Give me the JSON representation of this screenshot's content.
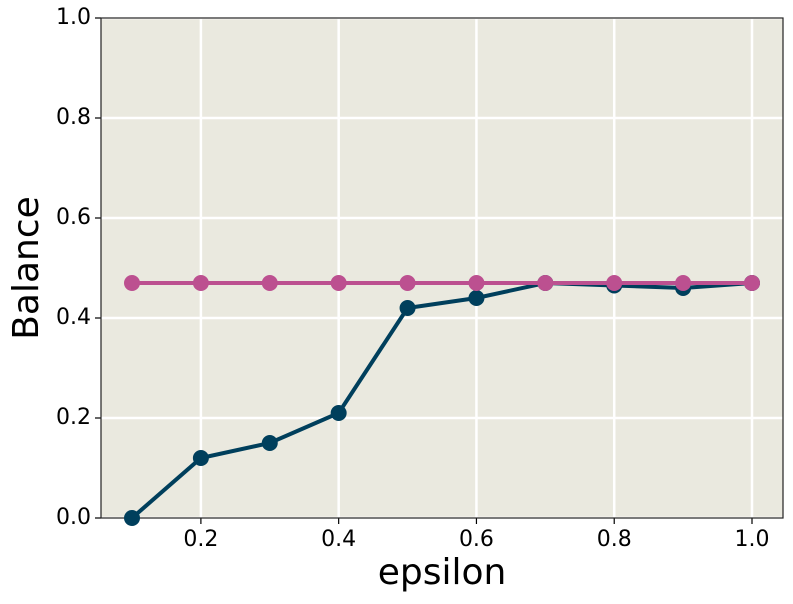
{
  "chart_data": {
    "type": "line",
    "x": [
      0.1,
      0.2,
      0.3,
      0.4,
      0.5,
      0.6,
      0.7,
      0.8,
      0.9,
      1.0
    ],
    "series": [
      {
        "color": "#003f5c",
        "values": [
          0.0,
          0.12,
          0.15,
          0.21,
          0.42,
          0.44,
          0.47,
          0.465,
          0.46,
          0.47
        ]
      },
      {
        "color": "#bc5090",
        "values": [
          0.47,
          0.47,
          0.47,
          0.47,
          0.47,
          0.47,
          0.47,
          0.47,
          0.47,
          0.47
        ]
      }
    ],
    "xlabel": "epsilon",
    "ylabel": "Balance",
    "xlim": [
      0.055,
      1.045
    ],
    "ylim": [
      0,
      1
    ],
    "xticks": [
      0.2,
      0.4,
      0.6,
      0.8,
      {
        "value": 1,
        "label": "1.0"
      }
    ],
    "yticks": [
      {
        "value": 0,
        "label": "0.0"
      },
      0.2,
      0.4,
      0.6,
      0.8,
      {
        "value": 1,
        "label": "1.0"
      }
    ],
    "grid": true,
    "background": "#eae9df"
  }
}
